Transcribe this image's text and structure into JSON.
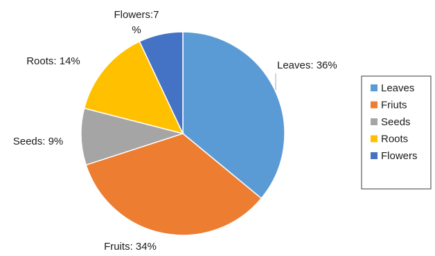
{
  "chart_data": {
    "type": "pie",
    "title": "",
    "slices": [
      {
        "label": "Leaves",
        "value": 36,
        "color": "#5b9bd5",
        "data_label": "Leaves: 36%"
      },
      {
        "label": "Friuts",
        "value": 34,
        "color": "#ed7d31",
        "data_label": "Fruits: 34%"
      },
      {
        "label": "Seeds",
        "value": 9,
        "color": "#a5a5a5",
        "data_label": "Seeds: 9%"
      },
      {
        "label": "Roots",
        "value": 14,
        "color": "#ffc000",
        "data_label": "Roots: 14%"
      },
      {
        "label": "Flowers",
        "value": 7,
        "color": "#4472c4",
        "data_label_lines": [
          "Flowers:7",
          "%"
        ]
      }
    ],
    "start_angle": "12 o'clock",
    "direction": "clockwise",
    "legend": {
      "position": "right",
      "entries": [
        "Leaves",
        "Friuts",
        "Seeds",
        "Roots",
        "Flowers"
      ]
    }
  }
}
